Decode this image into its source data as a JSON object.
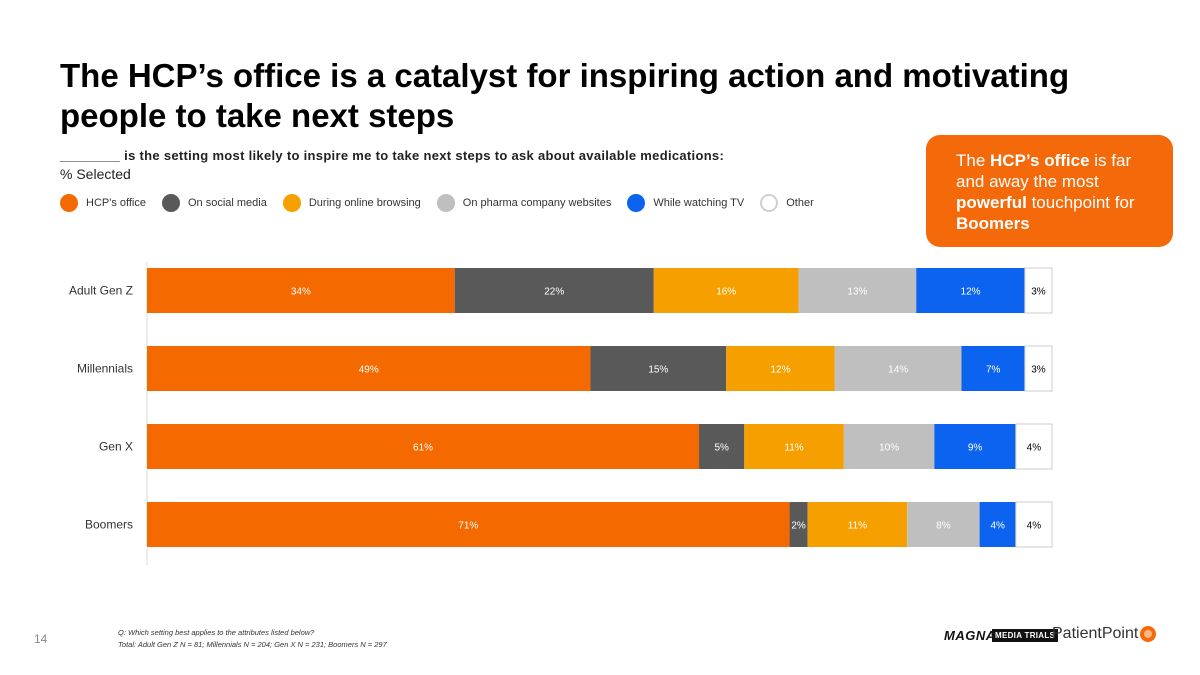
{
  "page": {
    "title": "The HCP’s office is a catalyst for inspiring action and motivating people to take next steps",
    "subtitle": "________ is the setting most likely to inspire me to take next steps to ask about available medications:",
    "subtitle2": "% Selected",
    "page_number": "14",
    "footnote_q": "Q: Which setting best applies to the attributes listed below?",
    "footnote_n": "Total: Adult Gen Z N = 81; Millennials N = 204; Gen X N = 231; Boomers N = 297"
  },
  "callout": {
    "t1": "The ",
    "b1": "HCP’s office",
    "t2": " is far and away the most ",
    "b2": "powerful",
    "t3": " touchpoint for ",
    "b3": "Boomers"
  },
  "logos": {
    "magna": "MAGNA",
    "media_trials": "MEDIA TRIALS",
    "patientpoint": "PatientPoint"
  },
  "chart_data": {
    "type": "bar",
    "orientation": "horizontal",
    "stacked": true,
    "percent_stacked": true,
    "categories": [
      "Adult Gen Z",
      "Millennials",
      "Gen X",
      "Boomers"
    ],
    "value_suffix": "%",
    "xlim": [
      0,
      100
    ],
    "legend_position": "top",
    "grid": false,
    "series": [
      {
        "name": "HCP's office",
        "color": "#F46A00",
        "label_color": "#ffffff",
        "values": [
          34,
          49,
          61,
          71
        ]
      },
      {
        "name": "On social media",
        "color": "#595959",
        "label_color": "#ffffff",
        "values": [
          22,
          15,
          5,
          2
        ]
      },
      {
        "name": "During online browsing",
        "color": "#F5A000",
        "label_color": "#ffffff",
        "values": [
          16,
          12,
          11,
          11
        ]
      },
      {
        "name": "On pharma company websites",
        "color": "#BFBFBF",
        "label_color": "#ffffff",
        "values": [
          13,
          14,
          10,
          8
        ]
      },
      {
        "name": "While watching TV",
        "color": "#0B63F0",
        "label_color": "#ffffff",
        "values": [
          12,
          7,
          9,
          4
        ]
      },
      {
        "name": "Other",
        "color": "#ffffff",
        "label_color": "#000000",
        "border": "#CCCCCC",
        "values": [
          3,
          3,
          4,
          4
        ]
      }
    ]
  }
}
